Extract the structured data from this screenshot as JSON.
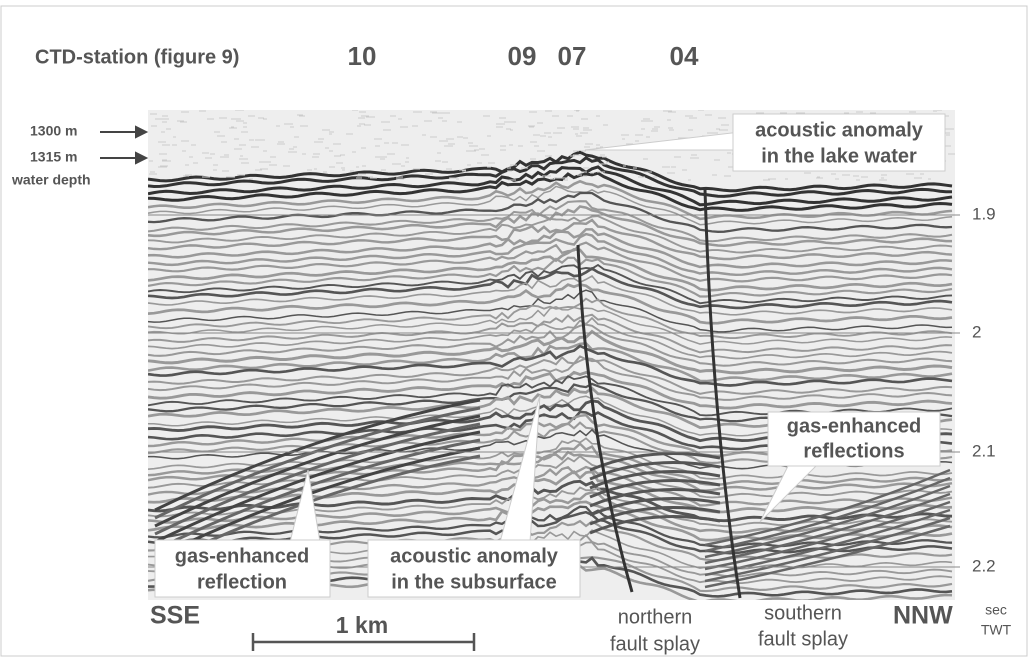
{
  "header": {
    "station_label": "CTD-station (figure 9)",
    "stations": [
      "10",
      "09",
      "07",
      "04"
    ]
  },
  "depth_labels": {
    "top": "1300 m",
    "bottom": "1315 m",
    "caption": "water depth"
  },
  "annotations": [
    {
      "lines": [
        "acoustic anomaly",
        "in the lake water"
      ]
    },
    {
      "lines": [
        "gas-enhanced",
        "reflections"
      ]
    },
    {
      "lines": [
        "gas-enhanced",
        "reflection"
      ]
    },
    {
      "lines": [
        "acoustic anomaly",
        "in the subsurface"
      ]
    }
  ],
  "directions": {
    "left": "SSE",
    "right": "NNW"
  },
  "faults": [
    {
      "lines": [
        "northern",
        "fault splay"
      ]
    },
    {
      "lines": [
        "southern",
        "fault splay"
      ]
    }
  ],
  "time_axis": {
    "unit_lines": [
      "sec",
      "TWT"
    ],
    "ticks": [
      "1.9",
      "2",
      "2.1",
      "2.2"
    ]
  },
  "scale_bar": {
    "label": "1 km"
  }
}
